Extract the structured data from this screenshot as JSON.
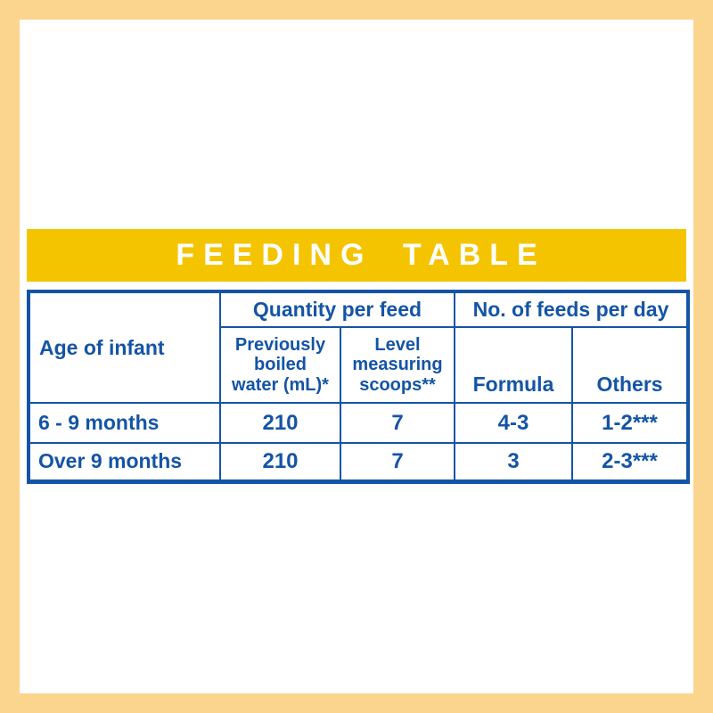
{
  "colors": {
    "package_border_yellow": "#FBD48E",
    "banner_gold": "#F5C400",
    "table_blue": "#1454A6",
    "background_white": "#FFFFFF",
    "banner_text_white": "#FFFFFF"
  },
  "banner": {
    "title": "FEEDING TABLE"
  },
  "table": {
    "age_header": "Age of infant",
    "group_headers": [
      "Quantity per feed",
      "No. of feeds per day"
    ],
    "sub_headers": [
      "Previously\nboiled\nwater (mL)*",
      "Level\nmeasuring\nscoops**",
      "Formula",
      "Others"
    ],
    "rows": [
      {
        "age": "6 - 9 months",
        "water": "210",
        "scoops": "7",
        "formula": "4-3",
        "others": "1-2***"
      },
      {
        "age": "Over 9 months",
        "water": "210",
        "scoops": "7",
        "formula": "3",
        "others": "2-3***"
      }
    ]
  }
}
